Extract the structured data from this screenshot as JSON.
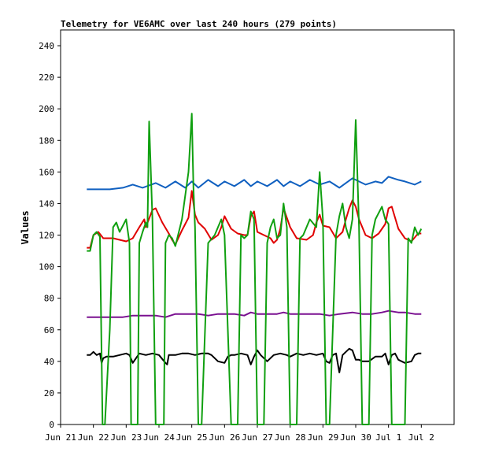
{
  "chart_data": {
    "type": "line",
    "title": "Telemetry for VE6AMC over last 240 hours (279 points)",
    "xlabel": "",
    "ylabel": "Values",
    "ylim": [
      0,
      250
    ],
    "yticks": [
      0,
      20,
      40,
      60,
      80,
      100,
      120,
      140,
      160,
      180,
      200,
      220,
      240
    ],
    "xlim": [
      21,
      33
    ],
    "xticks": [
      {
        "x": 21,
        "label": "Jun 21"
      },
      {
        "x": 22,
        "label": "Jun 22"
      },
      {
        "x": 23,
        "label": "Jun 23"
      },
      {
        "x": 24,
        "label": "Jun 24"
      },
      {
        "x": 25,
        "label": "Jun 25"
      },
      {
        "x": 26,
        "label": "Jun 26"
      },
      {
        "x": 27,
        "label": "Jun 27"
      },
      {
        "x": 28,
        "label": "Jun 28"
      },
      {
        "x": 29,
        "label": "Jun 29"
      },
      {
        "x": 30,
        "label": "Jun 30"
      },
      {
        "x": 31,
        "label": "Jul 1"
      },
      {
        "x": 32,
        "label": "Jul 2"
      }
    ],
    "grid": false,
    "series": [
      {
        "color": "#1060c0",
        "x": [
          21.8,
          22.5,
          22.9,
          23.2,
          23.5,
          23.9,
          24.2,
          24.5,
          24.8,
          25.0,
          25.2,
          25.5,
          25.8,
          26.0,
          26.3,
          26.6,
          26.8,
          27.0,
          27.3,
          27.6,
          27.8,
          28.0,
          28.3,
          28.6,
          28.9,
          29.2,
          29.5,
          29.9,
          30.0,
          30.3,
          30.6,
          30.8,
          31.0,
          31.3,
          31.5,
          31.8,
          32.0
        ],
        "values": [
          149,
          149,
          150,
          152,
          150,
          153,
          150,
          154,
          150,
          154,
          150,
          155,
          151,
          154,
          151,
          155,
          151,
          154,
          151,
          155,
          151,
          154,
          151,
          155,
          152,
          154,
          150,
          156,
          155,
          152,
          154,
          153,
          157,
          155,
          154,
          152,
          154
        ]
      },
      {
        "color": "#e00000",
        "x": [
          21.8,
          21.9,
          22.0,
          22.15,
          22.3,
          22.6,
          22.8,
          23.0,
          23.2,
          23.4,
          23.55,
          23.6,
          23.8,
          23.9,
          24.1,
          24.3,
          24.4,
          24.5,
          24.7,
          24.9,
          25.0,
          25.1,
          25.2,
          25.4,
          25.6,
          25.8,
          25.9,
          26.0,
          26.2,
          26.4,
          26.6,
          26.7,
          26.8,
          26.9,
          27.0,
          27.2,
          27.4,
          27.5,
          27.6,
          27.7,
          27.8,
          28.0,
          28.2,
          28.5,
          28.7,
          28.8,
          28.9,
          29.0,
          29.2,
          29.4,
          29.6,
          29.7,
          29.8,
          29.9,
          30.0,
          30.1,
          30.3,
          30.5,
          30.7,
          30.9,
          31.0,
          31.1,
          31.3,
          31.5,
          31.7,
          31.9,
          32.0
        ],
        "values": [
          112,
          112,
          120,
          122,
          118,
          118,
          117,
          116,
          118,
          125,
          130,
          125,
          136,
          137,
          128,
          121,
          117,
          114,
          123,
          131,
          148,
          133,
          128,
          124,
          117,
          120,
          125,
          132,
          124,
          121,
          120,
          120,
          132,
          135,
          122,
          120,
          118,
          115,
          117,
          124,
          137,
          125,
          118,
          117,
          120,
          128,
          133,
          126,
          125,
          118,
          122,
          130,
          137,
          142,
          138,
          130,
          120,
          118,
          121,
          127,
          137,
          138,
          124,
          118,
          116,
          121,
          121
        ]
      },
      {
        "color": "#7a1090",
        "x": [
          21.8,
          22.5,
          22.9,
          23.2,
          23.5,
          23.9,
          24.2,
          24.5,
          24.8,
          25.2,
          25.5,
          25.8,
          26.0,
          26.3,
          26.6,
          26.8,
          27.0,
          27.3,
          27.6,
          27.8,
          28.0,
          28.3,
          28.6,
          28.9,
          29.2,
          29.5,
          29.9,
          30.2,
          30.5,
          30.8,
          31.0,
          31.3,
          31.5,
          31.8,
          32.0
        ],
        "values": [
          68,
          68,
          68,
          69,
          69,
          69,
          68,
          70,
          70,
          70,
          69,
          70,
          70,
          70,
          69,
          71,
          70,
          70,
          70,
          71,
          70,
          70,
          70,
          70,
          69,
          70,
          71,
          70,
          70,
          71,
          72,
          71,
          71,
          70,
          70
        ]
      },
      {
        "color": "#000000",
        "x": [
          21.8,
          21.9,
          22.0,
          22.1,
          22.2,
          22.25,
          22.3,
          22.4,
          22.6,
          22.8,
          23.0,
          23.1,
          23.2,
          23.4,
          23.6,
          23.8,
          24.0,
          24.2,
          24.25,
          24.3,
          24.5,
          24.7,
          24.9,
          25.1,
          25.3,
          25.5,
          25.6,
          25.8,
          26.0,
          26.1,
          26.2,
          26.3,
          26.5,
          26.7,
          26.8,
          26.9,
          27.0,
          27.1,
          27.3,
          27.5,
          27.7,
          27.9,
          28.0,
          28.2,
          28.4,
          28.6,
          28.8,
          29.0,
          29.1,
          29.2,
          29.3,
          29.4,
          29.5,
          29.6,
          29.8,
          29.9,
          30.0,
          30.1,
          30.2,
          30.4,
          30.6,
          30.8,
          30.9,
          31.0,
          31.1,
          31.2,
          31.3,
          31.4,
          31.5,
          31.7,
          31.8,
          31.9,
          32.0
        ],
        "values": [
          44,
          44,
          46,
          44,
          45,
          39,
          42,
          43,
          43,
          44,
          45,
          44,
          39,
          45,
          44,
          45,
          44,
          39,
          38,
          44,
          44,
          45,
          45,
          44,
          45,
          45,
          44,
          40,
          39,
          43,
          44,
          44,
          45,
          44,
          38,
          43,
          47,
          44,
          40,
          44,
          45,
          44,
          43,
          45,
          44,
          45,
          44,
          45,
          40,
          39,
          44,
          45,
          33,
          44,
          48,
          47,
          41,
          41,
          40,
          40,
          43,
          43,
          45,
          38,
          44,
          45,
          41,
          40,
          39,
          40,
          44,
          45,
          45
        ]
      },
      {
        "color": "#10a010",
        "x": [
          21.8,
          21.9,
          22.0,
          22.1,
          22.2,
          22.28,
          22.35,
          22.5,
          22.6,
          22.7,
          22.8,
          22.9,
          23.0,
          23.1,
          23.15,
          23.25,
          23.35,
          23.4,
          23.5,
          23.6,
          23.65,
          23.7,
          23.8,
          23.9,
          24.0,
          24.15,
          24.2,
          24.3,
          24.4,
          24.5,
          24.7,
          24.9,
          25.0,
          25.05,
          25.1,
          25.2,
          25.3,
          25.5,
          25.7,
          25.8,
          25.9,
          26.0,
          26.2,
          26.3,
          26.4,
          26.5,
          26.6,
          26.7,
          26.8,
          26.9,
          27.0,
          27.1,
          27.2,
          27.3,
          27.4,
          27.5,
          27.6,
          27.7,
          27.8,
          27.9,
          28.0,
          28.1,
          28.2,
          28.3,
          28.4,
          28.6,
          28.8,
          28.9,
          29.0,
          29.1,
          29.2,
          29.4,
          29.5,
          29.6,
          29.7,
          29.8,
          29.9,
          30.0,
          30.1,
          30.2,
          30.4,
          30.5,
          30.6,
          30.8,
          30.9,
          31.0,
          31.1,
          31.3,
          31.5,
          31.6,
          31.7,
          31.8,
          31.9,
          32.0
        ],
        "values": [
          110,
          110,
          120,
          122,
          119,
          0,
          0,
          60,
          125,
          128,
          122,
          126,
          130,
          115,
          0,
          0,
          0,
          115,
          122,
          128,
          125,
          192,
          130,
          0,
          0,
          0,
          115,
          120,
          118,
          113,
          130,
          160,
          197,
          150,
          125,
          0,
          0,
          115,
          120,
          125,
          130,
          120,
          0,
          0,
          0,
          120,
          118,
          120,
          135,
          130,
          0,
          0,
          0,
          115,
          125,
          130,
          118,
          120,
          140,
          125,
          0,
          0,
          0,
          118,
          120,
          130,
          125,
          160,
          130,
          0,
          0,
          120,
          132,
          140,
          125,
          118,
          130,
          193,
          125,
          0,
          0,
          120,
          130,
          138,
          130,
          127,
          0,
          0,
          0,
          118,
          115,
          125,
          120,
          124
        ]
      }
    ]
  }
}
